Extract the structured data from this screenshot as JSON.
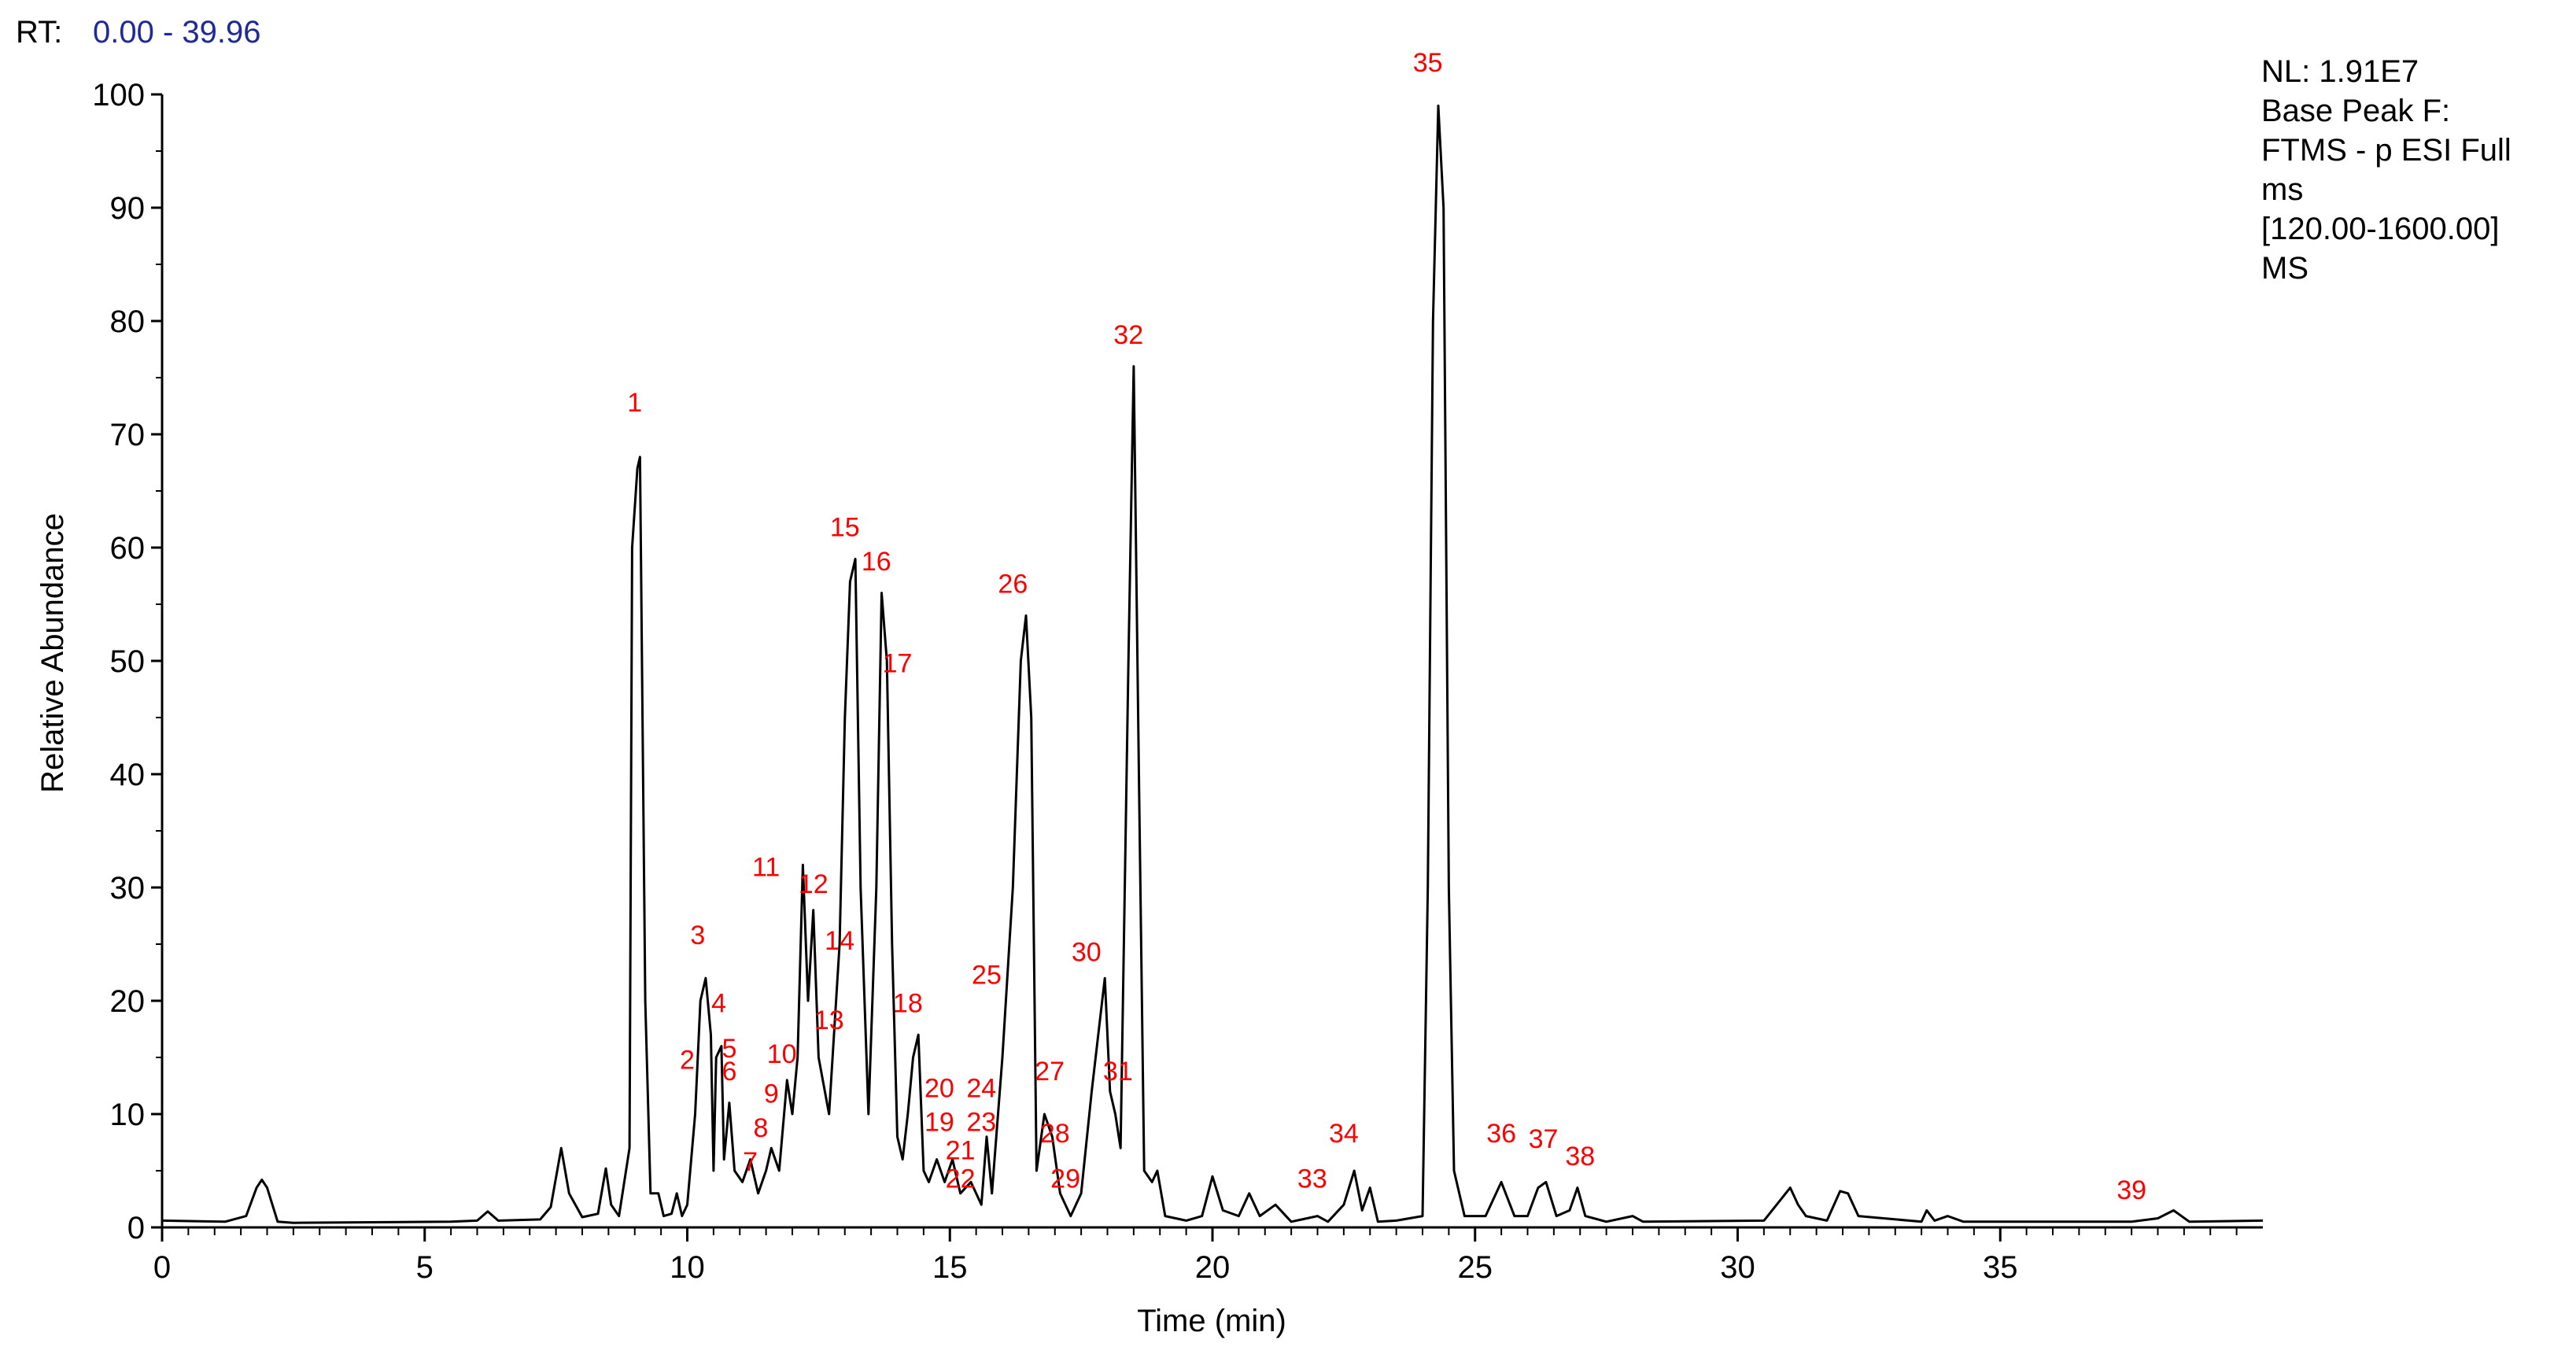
{
  "header": {
    "rt_label": "RT:",
    "rt_range": "0.00 - 39.96",
    "rt_color": "#1f2a9a"
  },
  "info": {
    "lines": [
      "NL: 1.91E7",
      "Base Peak F:",
      "FTMS - p ESI Full",
      "ms",
      "[120.00-1600.00]",
      "MS"
    ]
  },
  "chart_data": {
    "type": "line",
    "title": "",
    "xlabel": "Time (min)",
    "ylabel": "Relative Abundance",
    "xlim": [
      0,
      40
    ],
    "ylim": [
      0,
      100
    ],
    "x_ticks": [
      0,
      5,
      10,
      15,
      20,
      25,
      30,
      35
    ],
    "y_ticks": [
      0,
      10,
      20,
      30,
      40,
      50,
      60,
      70,
      80,
      90,
      100
    ],
    "grid": false,
    "line_color": "#000000",
    "label_color": "#ff0000",
    "series": [
      {
        "values": [
          [
            0.0,
            0.6
          ],
          [
            1.2,
            0.5
          ],
          [
            1.6,
            1.0
          ],
          [
            1.8,
            3.5
          ],
          [
            1.9,
            4.2
          ],
          [
            2.0,
            3.5
          ],
          [
            2.2,
            0.5
          ],
          [
            2.5,
            0.4
          ],
          [
            5.5,
            0.5
          ],
          [
            6.0,
            0.6
          ],
          [
            6.2,
            1.4
          ],
          [
            6.4,
            0.6
          ],
          [
            7.2,
            0.7
          ],
          [
            7.4,
            1.8
          ],
          [
            7.6,
            7.0
          ],
          [
            7.75,
            3.0
          ],
          [
            8.0,
            0.9
          ],
          [
            8.3,
            1.2
          ],
          [
            8.45,
            5.2
          ],
          [
            8.55,
            2.0
          ],
          [
            8.7,
            1.0
          ],
          [
            8.9,
            7.0
          ],
          [
            8.95,
            60.0
          ],
          [
            9.05,
            67.0
          ],
          [
            9.1,
            68.0
          ],
          [
            9.2,
            20.0
          ],
          [
            9.3,
            3.0
          ],
          [
            9.45,
            3.0
          ],
          [
            9.55,
            1.0
          ],
          [
            9.7,
            1.2
          ],
          [
            9.8,
            3.0
          ],
          [
            9.9,
            1.0
          ],
          [
            10.0,
            2.0
          ],
          [
            10.15,
            10.0
          ],
          [
            10.25,
            20.0
          ],
          [
            10.35,
            22.0
          ],
          [
            10.45,
            17.0
          ],
          [
            10.5,
            5.0
          ],
          [
            10.55,
            15.0
          ],
          [
            10.65,
            16.0
          ],
          [
            10.7,
            6.0
          ],
          [
            10.8,
            11.0
          ],
          [
            10.9,
            5.0
          ],
          [
            11.05,
            4.0
          ],
          [
            11.2,
            6.0
          ],
          [
            11.35,
            3.0
          ],
          [
            11.5,
            5.0
          ],
          [
            11.6,
            7.0
          ],
          [
            11.75,
            5.0
          ],
          [
            11.9,
            13.0
          ],
          [
            12.0,
            10.0
          ],
          [
            12.1,
            15.0
          ],
          [
            12.2,
            32.0
          ],
          [
            12.3,
            20.0
          ],
          [
            12.4,
            28.0
          ],
          [
            12.5,
            15.0
          ],
          [
            12.7,
            10.0
          ],
          [
            12.9,
            25.0
          ],
          [
            13.0,
            45.0
          ],
          [
            13.1,
            57.0
          ],
          [
            13.2,
            59.0
          ],
          [
            13.3,
            30.0
          ],
          [
            13.45,
            10.0
          ],
          [
            13.6,
            30.0
          ],
          [
            13.7,
            56.0
          ],
          [
            13.8,
            50.0
          ],
          [
            13.9,
            25.0
          ],
          [
            14.0,
            8.0
          ],
          [
            14.1,
            6.0
          ],
          [
            14.2,
            10.0
          ],
          [
            14.3,
            15.0
          ],
          [
            14.4,
            17.0
          ],
          [
            14.5,
            5.0
          ],
          [
            14.6,
            4.0
          ],
          [
            14.75,
            6.0
          ],
          [
            14.9,
            4.0
          ],
          [
            15.05,
            6.0
          ],
          [
            15.2,
            3.0
          ],
          [
            15.4,
            4.0
          ],
          [
            15.6,
            2.0
          ],
          [
            15.7,
            8.0
          ],
          [
            15.8,
            3.0
          ],
          [
            16.0,
            15.0
          ],
          [
            16.2,
            30.0
          ],
          [
            16.35,
            50.0
          ],
          [
            16.45,
            54.0
          ],
          [
            16.55,
            45.0
          ],
          [
            16.65,
            5.0
          ],
          [
            16.8,
            10.0
          ],
          [
            16.95,
            8.0
          ],
          [
            17.1,
            3.0
          ],
          [
            17.3,
            1.0
          ],
          [
            17.5,
            3.0
          ],
          [
            17.7,
            12.0
          ],
          [
            17.85,
            18.0
          ],
          [
            17.95,
            22.0
          ],
          [
            18.05,
            12.0
          ],
          [
            18.15,
            10.0
          ],
          [
            18.25,
            7.0
          ],
          [
            18.4,
            50.0
          ],
          [
            18.5,
            76.0
          ],
          [
            18.6,
            40.0
          ],
          [
            18.7,
            5.0
          ],
          [
            18.85,
            4.0
          ],
          [
            18.95,
            5.0
          ],
          [
            19.1,
            1.0
          ],
          [
            19.5,
            0.6
          ],
          [
            19.8,
            1.0
          ],
          [
            20.0,
            4.5
          ],
          [
            20.2,
            1.5
          ],
          [
            20.5,
            1.0
          ],
          [
            20.7,
            3.0
          ],
          [
            20.9,
            1.0
          ],
          [
            21.2,
            2.0
          ],
          [
            21.5,
            0.5
          ],
          [
            22.0,
            1.0
          ],
          [
            22.2,
            0.5
          ],
          [
            22.5,
            2.0
          ],
          [
            22.7,
            5.0
          ],
          [
            22.85,
            1.5
          ],
          [
            23.0,
            3.5
          ],
          [
            23.15,
            0.5
          ],
          [
            23.5,
            0.6
          ],
          [
            24.0,
            1.0
          ],
          [
            24.1,
            30.0
          ],
          [
            24.2,
            80.0
          ],
          [
            24.3,
            99.0
          ],
          [
            24.4,
            90.0
          ],
          [
            24.5,
            30.0
          ],
          [
            24.6,
            5.0
          ],
          [
            24.8,
            1.0
          ],
          [
            25.2,
            1.0
          ],
          [
            25.5,
            4.0
          ],
          [
            25.75,
            1.0
          ],
          [
            26.0,
            1.0
          ],
          [
            26.2,
            3.5
          ],
          [
            26.35,
            4.0
          ],
          [
            26.55,
            1.0
          ],
          [
            26.8,
            1.5
          ],
          [
            26.95,
            3.5
          ],
          [
            27.1,
            1.0
          ],
          [
            27.5,
            0.5
          ],
          [
            28.0,
            1.0
          ],
          [
            28.2,
            0.5
          ],
          [
            30.5,
            0.6
          ],
          [
            31.0,
            3.5
          ],
          [
            31.15,
            2.0
          ],
          [
            31.3,
            1.0
          ],
          [
            31.7,
            0.6
          ],
          [
            31.95,
            3.2
          ],
          [
            32.1,
            3.0
          ],
          [
            32.3,
            1.0
          ],
          [
            33.5,
            0.5
          ],
          [
            33.6,
            1.5
          ],
          [
            33.75,
            0.6
          ],
          [
            34.0,
            1.0
          ],
          [
            34.3,
            0.5
          ],
          [
            37.5,
            0.5
          ],
          [
            38.0,
            0.8
          ],
          [
            38.3,
            1.5
          ],
          [
            38.6,
            0.5
          ],
          [
            40.0,
            0.6
          ]
        ]
      }
    ],
    "peak_labels": [
      {
        "label": "1",
        "x": 9.0,
        "y": 72
      },
      {
        "label": "2",
        "x": 10.0,
        "y": 14
      },
      {
        "label": "3",
        "x": 10.2,
        "y": 25
      },
      {
        "label": "4",
        "x": 10.6,
        "y": 19
      },
      {
        "label": "5",
        "x": 10.8,
        "y": 15
      },
      {
        "label": "6",
        "x": 10.8,
        "y": 13
      },
      {
        "label": "7",
        "x": 11.2,
        "y": 5
      },
      {
        "label": "8",
        "x": 11.4,
        "y": 8
      },
      {
        "label": "9",
        "x": 11.6,
        "y": 11
      },
      {
        "label": "10",
        "x": 11.8,
        "y": 14.5
      },
      {
        "label": "11",
        "x": 11.5,
        "y": 31
      },
      {
        "label": "12",
        "x": 12.4,
        "y": 29.5
      },
      {
        "label": "13",
        "x": 12.7,
        "y": 17.5
      },
      {
        "label": "14",
        "x": 12.9,
        "y": 24.5
      },
      {
        "label": "15",
        "x": 13.0,
        "y": 61
      },
      {
        "label": "16",
        "x": 13.6,
        "y": 58
      },
      {
        "label": "17",
        "x": 14.0,
        "y": 49
      },
      {
        "label": "18",
        "x": 14.2,
        "y": 19
      },
      {
        "label": "19",
        "x": 14.8,
        "y": 8.5
      },
      {
        "label": "20",
        "x": 14.8,
        "y": 11.5
      },
      {
        "label": "21",
        "x": 15.2,
        "y": 6
      },
      {
        "label": "22",
        "x": 15.2,
        "y": 3.5
      },
      {
        "label": "23",
        "x": 15.6,
        "y": 8.5
      },
      {
        "label": "24",
        "x": 15.6,
        "y": 11.5
      },
      {
        "label": "25",
        "x": 15.7,
        "y": 21.5
      },
      {
        "label": "26",
        "x": 16.2,
        "y": 56
      },
      {
        "label": "27",
        "x": 16.9,
        "y": 13
      },
      {
        "label": "28",
        "x": 17.0,
        "y": 7.5
      },
      {
        "label": "29",
        "x": 17.2,
        "y": 3.5
      },
      {
        "label": "30",
        "x": 17.6,
        "y": 23.5
      },
      {
        "label": "31",
        "x": 18.2,
        "y": 13
      },
      {
        "label": "32",
        "x": 18.4,
        "y": 78
      },
      {
        "label": "33",
        "x": 21.9,
        "y": 3.5
      },
      {
        "label": "34",
        "x": 22.5,
        "y": 7.5
      },
      {
        "label": "35",
        "x": 24.1,
        "y": 102
      },
      {
        "label": "36",
        "x": 25.5,
        "y": 7.5
      },
      {
        "label": "37",
        "x": 26.3,
        "y": 7
      },
      {
        "label": "38",
        "x": 27.0,
        "y": 5.5
      },
      {
        "label": "39",
        "x": 37.5,
        "y": 2.5
      }
    ]
  }
}
